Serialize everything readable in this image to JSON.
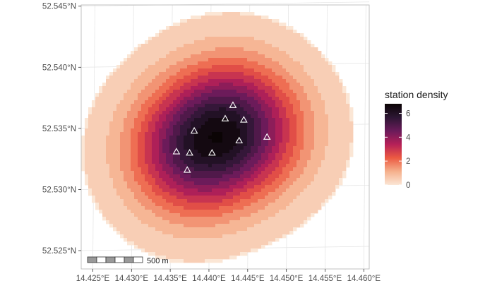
{
  "chart_data": {
    "type": "heatmap",
    "title": "",
    "xlabel": "",
    "ylabel": "",
    "x_ticks": [
      "14.425°E",
      "14.430°E",
      "14.435°E",
      "14.440°E",
      "14.445°E",
      "14.450°E",
      "14.455°E",
      "14.460°E"
    ],
    "x_tick_values": [
      14.425,
      14.43,
      14.435,
      14.44,
      14.445,
      14.45,
      14.455,
      14.46
    ],
    "y_ticks": [
      "52.525°N",
      "52.530°N",
      "52.535°N",
      "52.540°N",
      "52.545°N"
    ],
    "y_tick_values": [
      52.525,
      52.53,
      52.535,
      52.54,
      52.545
    ],
    "xlim": [
      14.4235,
      14.4607
    ],
    "ylim": [
      52.5235,
      52.5451
    ],
    "grid": true,
    "legend": {
      "title": "station density",
      "position": "right",
      "labels": [
        "0",
        "2",
        "4",
        "6"
      ],
      "values": [
        0,
        2,
        4,
        6
      ],
      "range": [
        0,
        6.8
      ],
      "colors": [
        "#fbe6d5",
        "#f5b08c",
        "#ec5a42",
        "#b52058",
        "#6a1b5a",
        "#2c1633",
        "#0b0405"
      ]
    },
    "stations": [
      {
        "lon": 14.4431,
        "lat": 52.5369
      },
      {
        "lon": 14.4421,
        "lat": 52.5358
      },
      {
        "lon": 14.4445,
        "lat": 52.5357
      },
      {
        "lon": 14.4381,
        "lat": 52.5348
      },
      {
        "lon": 14.4439,
        "lat": 52.534
      },
      {
        "lon": 14.4475,
        "lat": 52.5343
      },
      {
        "lon": 14.4358,
        "lat": 52.5331
      },
      {
        "lon": 14.4375,
        "lat": 52.533
      },
      {
        "lon": 14.4404,
        "lat": 52.533
      },
      {
        "lon": 14.4372,
        "lat": 52.5316
      }
    ],
    "scale_bar": {
      "label": "500 m"
    }
  },
  "colors": {
    "panel_border": "#b3b3b3",
    "grid": "#e3e3e3",
    "station_marker": "#ffffff"
  }
}
